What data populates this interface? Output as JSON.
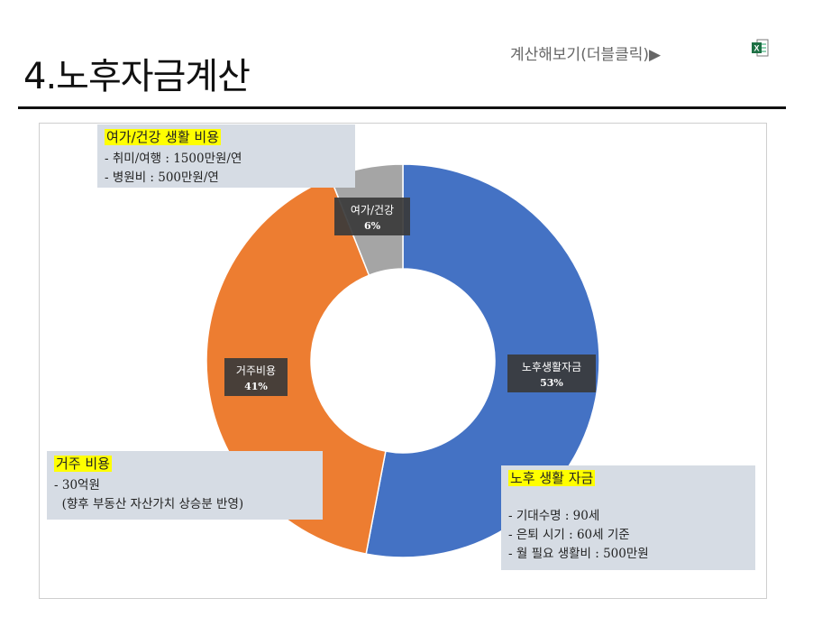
{
  "page": {
    "title": "4.노후자금계산",
    "calc_link": "계산해보기(더블클릭)▶",
    "excel_icon": "excel-icon"
  },
  "chart_data": {
    "type": "pie",
    "donut": true,
    "categories": [
      "노후생활자금",
      "거주비용",
      "여가/건강"
    ],
    "values": [
      53,
      41,
      6
    ],
    "data_labels": [
      "53%",
      "41%",
      "6%"
    ],
    "colors": [
      "#4472c4",
      "#ed7d31",
      "#a5a5a5"
    ],
    "start_angle_deg": 0,
    "direction": "clockwise",
    "legend": "none"
  },
  "callouts": {
    "leisure": {
      "heading": "여가/건강 생활 비용",
      "lines": [
        "- 취미/여행 : 1500만원/연",
        "- 병원비 : 500만원/연"
      ]
    },
    "housing": {
      "heading": "거주 비용",
      "lines": [
        "- 30억원",
        "  (향후 부동산 자산가치 상승분 반영)"
      ]
    },
    "retirement": {
      "heading": "노후 생활 자금",
      "lines": [
        "- 기대수명 : 90세",
        "- 은퇴 시기 : 60세 기준",
        "- 월 필요 생활비 : 500만원"
      ]
    }
  }
}
